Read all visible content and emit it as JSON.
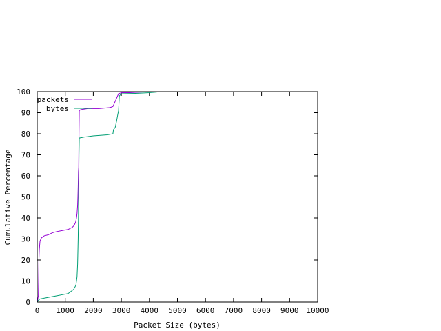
{
  "chart_data": {
    "type": "line",
    "title": "",
    "xlabel": "Packet Size (bytes)",
    "ylabel": "Cumulative Percentage",
    "xlim": [
      0,
      10000
    ],
    "ylim": [
      0,
      100
    ],
    "xticks": [
      0,
      1000,
      2000,
      3000,
      4000,
      5000,
      6000,
      7000,
      8000,
      9000,
      10000
    ],
    "yticks": [
      0,
      10,
      20,
      30,
      40,
      50,
      60,
      70,
      80,
      90,
      100
    ],
    "grid": false,
    "legend_position": "top-left",
    "series": [
      {
        "name": "packets",
        "color": "#9400d3",
        "points": [
          [
            0,
            0
          ],
          [
            40,
            3
          ],
          [
            50,
            10
          ],
          [
            60,
            20
          ],
          [
            75,
            25
          ],
          [
            100,
            29
          ],
          [
            150,
            30.5
          ],
          [
            250,
            31.5
          ],
          [
            400,
            32
          ],
          [
            550,
            33
          ],
          [
            700,
            33.5
          ],
          [
            900,
            34
          ],
          [
            1100,
            34.5
          ],
          [
            1250,
            35.5
          ],
          [
            1320,
            36.5
          ],
          [
            1370,
            38
          ],
          [
            1400,
            40
          ],
          [
            1420,
            42
          ],
          [
            1440,
            46
          ],
          [
            1450,
            50
          ],
          [
            1460,
            55
          ],
          [
            1470,
            62
          ],
          [
            1480,
            64
          ],
          [
            1490,
            80
          ],
          [
            1500,
            91
          ],
          [
            1550,
            91.5
          ],
          [
            1800,
            92
          ],
          [
            2200,
            92
          ],
          [
            2600,
            92.5
          ],
          [
            2700,
            93
          ],
          [
            2750,
            94.5
          ],
          [
            2800,
            96
          ],
          [
            2850,
            97.5
          ],
          [
            2900,
            99
          ],
          [
            3000,
            99.5
          ],
          [
            3300,
            99.5
          ],
          [
            3600,
            99.7
          ],
          [
            4000,
            100
          ],
          [
            4300,
            100
          ]
        ]
      },
      {
        "name": "bytes",
        "color": "#009e73",
        "points": [
          [
            0,
            0
          ],
          [
            50,
            1
          ],
          [
            100,
            1.5
          ],
          [
            300,
            2
          ],
          [
            500,
            2.5
          ],
          [
            700,
            3
          ],
          [
            900,
            3.5
          ],
          [
            1100,
            4
          ],
          [
            1200,
            5
          ],
          [
            1300,
            6
          ],
          [
            1380,
            8
          ],
          [
            1420,
            12
          ],
          [
            1440,
            18
          ],
          [
            1460,
            30
          ],
          [
            1470,
            40
          ],
          [
            1480,
            55
          ],
          [
            1490,
            70
          ],
          [
            1500,
            78
          ],
          [
            1700,
            78.5
          ],
          [
            2000,
            79
          ],
          [
            2500,
            79.5
          ],
          [
            2700,
            80
          ],
          [
            2720,
            82
          ],
          [
            2780,
            83
          ],
          [
            2830,
            86
          ],
          [
            2870,
            89
          ],
          [
            2900,
            91
          ],
          [
            2930,
            98
          ],
          [
            3000,
            99
          ],
          [
            3500,
            99.2
          ],
          [
            4000,
            99.5
          ],
          [
            4200,
            99.7
          ],
          [
            4400,
            100
          ],
          [
            4500,
            100
          ]
        ]
      }
    ]
  }
}
